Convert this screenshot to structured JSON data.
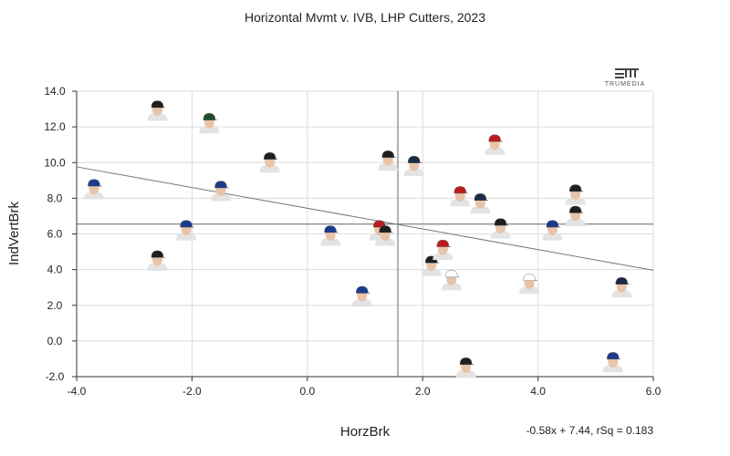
{
  "chart_data": {
    "type": "scatter",
    "title": "Horizontal Mvmt v. IVB, LHP Cutters, 2023",
    "xlabel": "HorzBrk",
    "ylabel": "IndVertBrk",
    "xlim": [
      -4.0,
      6.0
    ],
    "ylim": [
      -2.0,
      14.0
    ],
    "x_ticks": [
      "-4.0",
      "-2.0",
      "0.0",
      "2.0",
      "4.0",
      "6.0"
    ],
    "y_ticks": [
      "-2.0",
      "0.0",
      "2.0",
      "4.0",
      "6.0",
      "8.0",
      "10.0",
      "12.0",
      "14.0"
    ],
    "grid": true,
    "reference_lines": {
      "x": 1.57,
      "y": 6.55
    },
    "trendline": {
      "slope": -0.58,
      "intercept": 7.44,
      "label": "-0.58x + 7.44, rSq = 0.183"
    },
    "brand": "TRUMEDIA",
    "points": [
      {
        "x": -3.7,
        "y": 8.5,
        "cap": "#1e3a8a"
      },
      {
        "x": -2.6,
        "y": 12.9,
        "cap": "#1f1f1f"
      },
      {
        "x": -2.6,
        "y": 4.5,
        "cap": "#1f1f1f"
      },
      {
        "x": -2.1,
        "y": 6.2,
        "cap": "#1e3a8a"
      },
      {
        "x": -1.7,
        "y": 12.2,
        "cap": "#1f4d2b"
      },
      {
        "x": -1.5,
        "y": 8.4,
        "cap": "#1e3a8a"
      },
      {
        "x": -0.65,
        "y": 10.0,
        "cap": "#1f1f1f"
      },
      {
        "x": 0.4,
        "y": 5.9,
        "cap": "#1e3a8a"
      },
      {
        "x": 0.95,
        "y": 2.5,
        "cap": "#1e3a8a"
      },
      {
        "x": 1.25,
        "y": 6.2,
        "cap": "#b91c1c"
      },
      {
        "x": 1.35,
        "y": 5.9,
        "cap": "#1f1f1f"
      },
      {
        "x": 1.4,
        "y": 10.1,
        "cap": "#1f1f1f"
      },
      {
        "x": 1.85,
        "y": 9.8,
        "cap": "#1e2a44"
      },
      {
        "x": 2.15,
        "y": 4.2,
        "cap": "#1f1f1f"
      },
      {
        "x": 2.35,
        "y": 5.1,
        "cap": "#b91c1c"
      },
      {
        "x": 2.5,
        "y": 3.4,
        "cap": "#ffffff"
      },
      {
        "x": 2.65,
        "y": 8.1,
        "cap": "#b91c1c"
      },
      {
        "x": 2.75,
        "y": -1.5,
        "cap": "#1f1f1f"
      },
      {
        "x": 3.0,
        "y": 7.7,
        "cap": "#1e2a44"
      },
      {
        "x": 3.25,
        "y": 11.0,
        "cap": "#b91c1c"
      },
      {
        "x": 3.35,
        "y": 6.3,
        "cap": "#1f1f1f"
      },
      {
        "x": 3.85,
        "y": 3.2,
        "cap": "#ffffff"
      },
      {
        "x": 4.25,
        "y": 6.2,
        "cap": "#1e3a8a"
      },
      {
        "x": 4.65,
        "y": 8.2,
        "cap": "#1f1f1f"
      },
      {
        "x": 4.65,
        "y": 7.0,
        "cap": "#1f1f1f"
      },
      {
        "x": 5.45,
        "y": 3.0,
        "cap": "#1e2a44"
      },
      {
        "x": 5.3,
        "y": -1.2,
        "cap": "#1e3a8a"
      }
    ]
  }
}
